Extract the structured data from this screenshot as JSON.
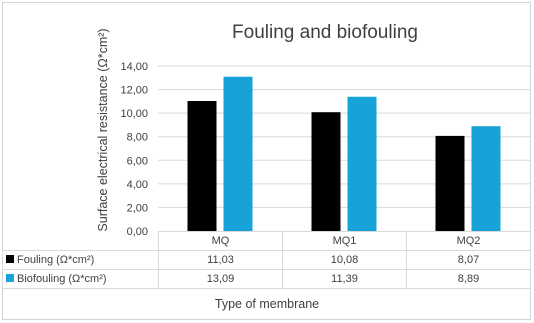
{
  "chart_data": {
    "type": "bar",
    "title": "Fouling and biofouling",
    "xlabel": "Type of membrane",
    "ylabel": "Surface electrical resistance (Ω*cm²)",
    "categories": [
      "MQ",
      "MQ1",
      "MQ2"
    ],
    "ylim": [
      0,
      14
    ],
    "yticks": [
      "0,00",
      "2,00",
      "4,00",
      "6,00",
      "8,00",
      "10,00",
      "12,00",
      "14,00"
    ],
    "grid": true,
    "legend": "data-table",
    "series": [
      {
        "name": "Fouling (Ω*cm²)",
        "color": "#000000",
        "values": [
          11.03,
          10.08,
          8.07
        ],
        "labels": [
          "11,03",
          "10,08",
          "8,07"
        ]
      },
      {
        "name": "Biofouling (Ω*cm²)",
        "color": "#17a2d8",
        "values": [
          13.09,
          11.39,
          8.89
        ],
        "labels": [
          "13,09",
          "11,39",
          "8,89"
        ]
      }
    ]
  }
}
